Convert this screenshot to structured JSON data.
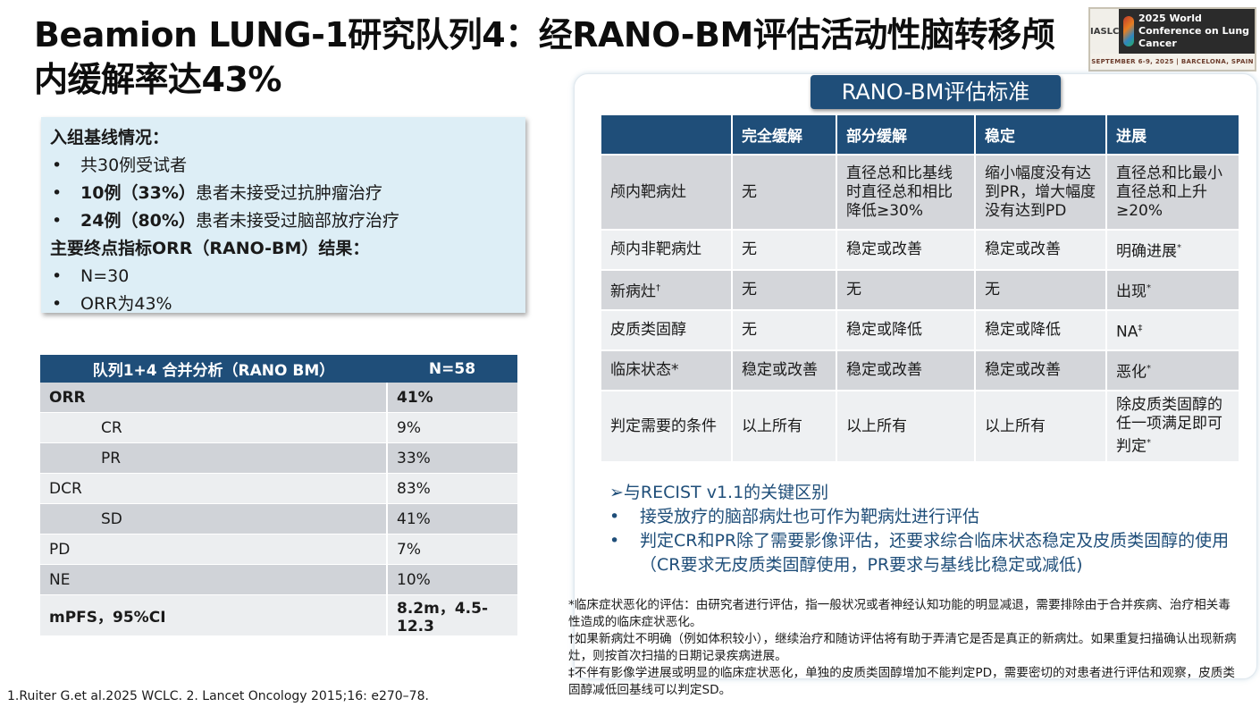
{
  "title": "Beamion LUNG-1研究队列4：经RANO-BM评估活动性脑转移颅内缓解率达43%",
  "logo": {
    "org": "IASLC",
    "conference": "2025 World Conference on Lung Cancer",
    "dates": "SEPTEMBER 6-9, 2025 | BARCELONA, SPAIN"
  },
  "baseline": {
    "heading": "入组基线情况：",
    "items": [
      {
        "bold": "",
        "text": "共30例受试者"
      },
      {
        "bold": "10例（33%）",
        "text": "患者未接受过抗肿瘤治疗"
      },
      {
        "bold": "24例（80%）",
        "text": "患者未接受过脑部放疗治疗"
      }
    ],
    "endpoint_heading": "主要终点指标ORR（RANO-BM）结果：",
    "endpoint_items": [
      "N=30",
      "ORR为43%"
    ],
    "bullet": "•"
  },
  "combined_table": {
    "headers": [
      "队列1+4 合并分析（RANO BM）",
      "N=58"
    ],
    "rows": [
      {
        "label": "ORR",
        "value": "41%",
        "bold": true,
        "indent": false
      },
      {
        "label": "CR",
        "value": "9%",
        "bold": false,
        "indent": true
      },
      {
        "label": "PR",
        "value": "33%",
        "bold": false,
        "indent": true
      },
      {
        "label": "DCR",
        "value": "83%",
        "bold": false,
        "indent": false
      },
      {
        "label": "SD",
        "value": "41%",
        "bold": false,
        "indent": true
      },
      {
        "label": "PD",
        "value": "7%",
        "bold": false,
        "indent": false
      },
      {
        "label": "NE",
        "value": "10%",
        "bold": false,
        "indent": false
      },
      {
        "label": "mPFS，95%CI",
        "value": "8.2m，4.5-12.3",
        "bold": true,
        "indent": false
      }
    ]
  },
  "reference": "1.Ruiter G.et al.2025 WCLC. 2. Lancet Oncology 2015;16: e270–78.",
  "rano_title": "RANO-BM评估标准",
  "rano_table": {
    "headers": [
      "",
      "完全缓解",
      "部分缓解",
      "稳定",
      "进展"
    ],
    "rows": [
      {
        "cells": [
          "颅内靶病灶",
          "无",
          "直径总和比基线时直径总和相比降低≥30%",
          "缩小幅度没有达到PR，增大幅度没有达到PD",
          "直径总和比最小直径总和上升≥20%"
        ],
        "height": 82
      },
      {
        "cells": [
          "颅内非靶病灶",
          "无",
          "稳定或改善",
          "稳定或改善",
          "明确进展"
        ],
        "mark": "*",
        "height": 43
      },
      {
        "cells": [
          "新病灶",
          "无",
          "无",
          "无",
          "出现"
        ],
        "label_mark": "†",
        "mark": "*",
        "height": 43
      },
      {
        "cells": [
          "皮质类固醇",
          "无",
          "稳定或降低",
          "稳定或降低",
          "NA"
        ],
        "mark": "‡",
        "height": 43
      },
      {
        "cells": [
          "临床状态*",
          "稳定或改善",
          "稳定或改善",
          "稳定或改善",
          "恶化"
        ],
        "mark": "*",
        "height": 43
      },
      {
        "cells": [
          "判定需要的条件",
          "以上所有",
          "以上所有",
          "以上所有",
          "除皮质类固醇的任一项满足即可判定"
        ],
        "mark": "*",
        "height": 78
      }
    ]
  },
  "differences": {
    "heading": "➢与RECIST v1.1的关键区别",
    "items": [
      "接受放疗的脑部病灶也可作为靶病灶进行评估",
      "判定CR和PR除了需要影像评估，还要求综合临床状态稳定及皮质类固醇的使用（CR要求无皮质类固醇使用，PR要求与基线比稳定或减低)"
    ]
  },
  "notes": [
    "*临床症状恶化的评估：由研究者进行评估，指一般状况或者神经认知功能的明显减退，需要排除由于合并疾病、治疗相关毒性造成的临床症状恶化。",
    "†如果新病灶不明确（例如体积较小），继续治疗和随访评估将有助于弄清它是否是真正的新病灶。如果重复扫描确认出现新病灶，则按首次扫描的日期记录疾病进展。",
    "‡不伴有影像学进展或明显的临床症状恶化，单独的皮质类固醇增加不能判定PD，需要密切的对患者进行评估和观察，皮质类固醇减低回基线可以判定SD。"
  ]
}
